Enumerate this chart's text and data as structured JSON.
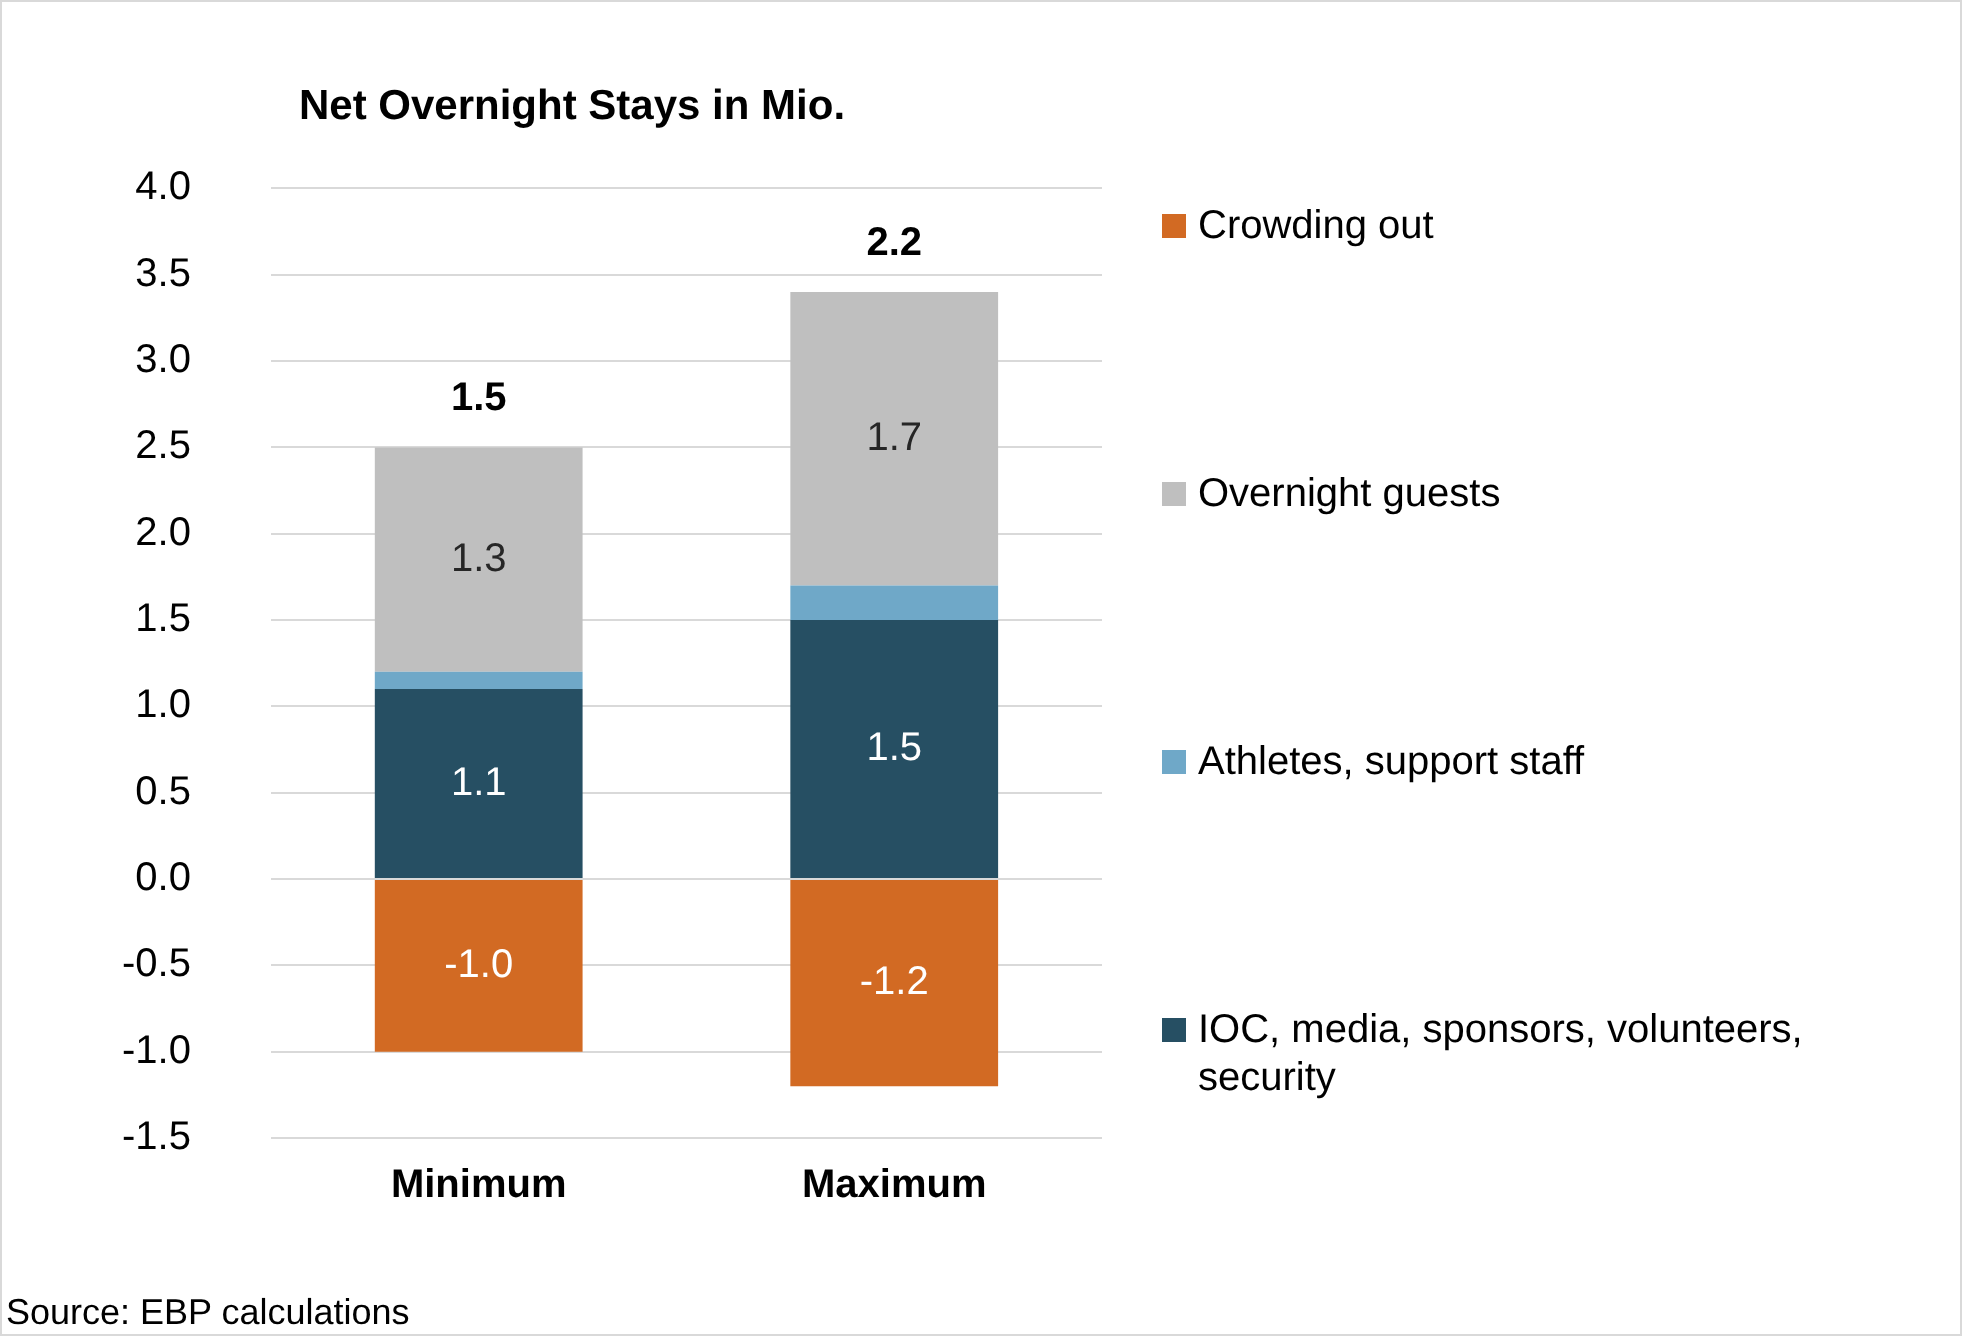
{
  "chart_data": {
    "type": "bar",
    "title": "Net Overnight Stays in Mio.",
    "categories": [
      "Minimum",
      "Maximum"
    ],
    "stacked": true,
    "series": [
      {
        "name": "IOC, media, sponsors, volunteers, security",
        "color": "#264f63",
        "values": [
          1.1,
          1.5
        ],
        "value_labels": [
          "1.1",
          "1.5"
        ]
      },
      {
        "name": "Athletes, support staff",
        "color": "#6fa8c8",
        "values": [
          0.1,
          0.2
        ]
      },
      {
        "name": "Overnight guests",
        "color": "#bfbfbf",
        "values": [
          1.3,
          1.7
        ],
        "value_labels": [
          "1.3",
          "1.7"
        ]
      },
      {
        "name": "Crowding out",
        "color": "#d26a23",
        "values": [
          -1.0,
          -1.2
        ],
        "value_labels": [
          "-1.0",
          "-1.2"
        ]
      }
    ],
    "totals": [
      "1.5",
      "2.2"
    ],
    "ylim": [
      -1.5,
      4.0
    ],
    "yticks": [
      {
        "value": -1.5,
        "label": "-1.5"
      },
      {
        "value": -1,
        "label": "-1.0"
      },
      {
        "value": -0.5,
        "label": "-0.5"
      },
      {
        "value": 0,
        "label": "0.0"
      },
      {
        "value": 0.5,
        "label": "0.5"
      },
      {
        "value": 1,
        "label": "1.0"
      },
      {
        "value": 1.5,
        "label": "1.5"
      },
      {
        "value": 2,
        "label": "2.0"
      },
      {
        "value": 2.5,
        "label": "2.5"
      },
      {
        "value": 3,
        "label": "3.0"
      },
      {
        "value": 3.5,
        "label": "3.5"
      },
      {
        "value": 4,
        "label": "4.0"
      }
    ],
    "grid": "y",
    "legend": "right",
    "annotations": [
      "Source: EBP calculations"
    ]
  }
}
